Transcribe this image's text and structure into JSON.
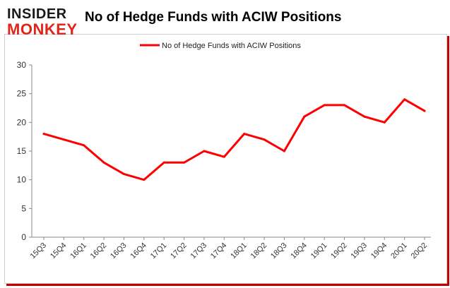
{
  "header": {
    "logo_top": "INSIDER",
    "logo_bottom": "MONKEY",
    "title": "No of Hedge Funds with ACIW Positions"
  },
  "colors": {
    "series": "#ff0000",
    "logo_dark": "#1a1a1a",
    "logo_red": "#e0261b",
    "frame_shadow": "#c00000"
  },
  "chart_data": {
    "type": "line",
    "title": "No of Hedge Funds with ACIW Positions",
    "legend_position": "top-center",
    "grid": false,
    "categories": [
      "15Q3",
      "15Q4",
      "16Q1",
      "16Q2",
      "16Q3",
      "16Q4",
      "17Q1",
      "17Q2",
      "17Q3",
      "17Q4",
      "18Q1",
      "18Q2",
      "18Q3",
      "18Q4",
      "19Q1",
      "19Q2",
      "19Q3",
      "19Q4",
      "20Q1",
      "20Q2"
    ],
    "series": [
      {
        "name": "No of Hedge Funds with ACIW Positions",
        "values": [
          18,
          17,
          16,
          13,
          11,
          10,
          13,
          13,
          15,
          14,
          18,
          17,
          15,
          21,
          23,
          23,
          21,
          20,
          24,
          22
        ]
      }
    ],
    "ylim": [
      0,
      30
    ],
    "yticks": [
      0,
      5,
      10,
      15,
      20,
      25,
      30
    ]
  }
}
